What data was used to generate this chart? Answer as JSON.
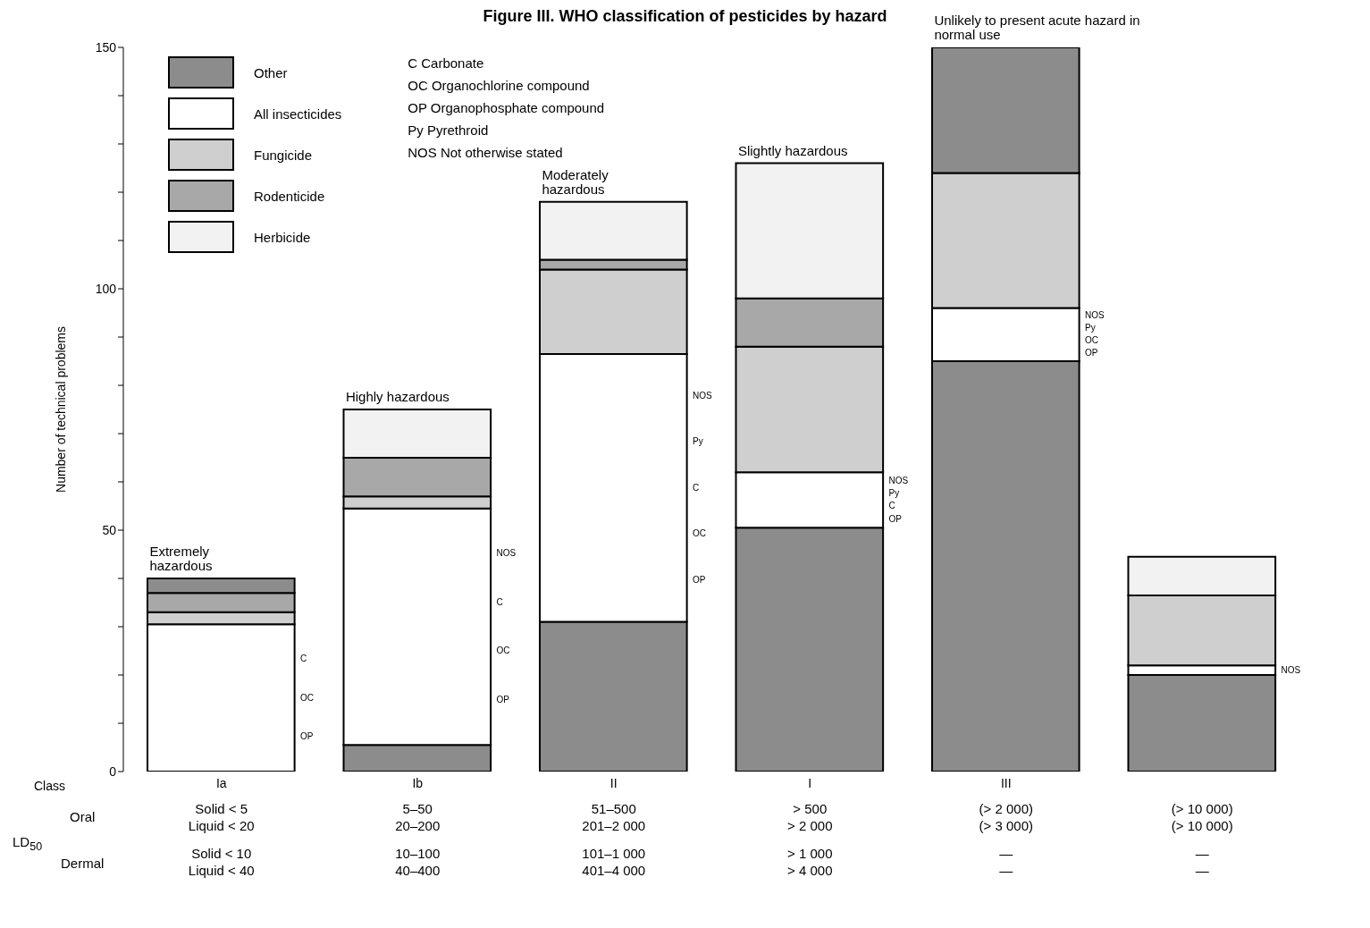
{
  "chart_data": {
    "type": "bar",
    "title": "Figure III. WHO classification of pesticides by hazard",
    "xlabel": "Class",
    "ylabel": "Number of technical problems",
    "stacked": true,
    "legend": "top left",
    "categories": [
      "Ia",
      "Ib",
      "II",
      "I",
      "III",
      null
    ],
    "ylim": [
      0,
      150
    ],
    "yticks": [
      0,
      {
        "value": 10,
        "label": null
      },
      {
        "value": 20,
        "label": null
      },
      {
        "value": 30,
        "label": null
      },
      {
        "value": 40,
        "label": null
      },
      50,
      {
        "value": 60,
        "label": null
      },
      {
        "value": 70,
        "label": null
      },
      {
        "value": 80,
        "label": null
      },
      {
        "value": 90,
        "label": null
      },
      100,
      {
        "value": 110,
        "label": null
      },
      {
        "value": 120,
        "label": null
      },
      {
        "value": 130,
        "label": null
      },
      {
        "value": 140,
        "label": null
      },
      150
    ],
    "series": [
      {
        "name": "Other",
        "color": "#8c8c8c",
        "values": [
          null,
          5.5,
          31,
          50.5,
          85,
          20
        ]
      },
      {
        "name": "All insecticides",
        "color": "#ffffff",
        "values": [
          30.5,
          49,
          55.5,
          11.5,
          11,
          2
        ]
      },
      {
        "name": "Fungicide",
        "color": "#cfcfcf",
        "values": [
          2.5,
          2.5,
          17.5,
          26,
          28,
          14.5
        ]
      },
      {
        "name": "Rodenticide",
        "color": "#a8a8a8",
        "values": [
          4,
          8,
          2,
          10,
          null,
          null
        ]
      },
      {
        "name": "Herbicide",
        "color": "#f2f2f2",
        "values": [
          null,
          10,
          12,
          28,
          null,
          8
        ]
      },
      {
        "color": "#8c8c8c",
        "values": [
          3,
          null,
          null,
          null,
          26,
          null
        ]
      }
    ],
    "annotations": [
      {
        "text": "Extremely hazardous",
        "x": "Ia",
        "y": 40
      },
      {
        "text": "Highly hazardous",
        "x": "Ib",
        "y": 75
      },
      {
        "text": "Moderately hazardous",
        "x": "II",
        "y": 118
      },
      {
        "text": "Slightly hazardous",
        "x": "I",
        "y": 126
      },
      {
        "text": "Unlikely to present acute hazard in normal use",
        "x": "III",
        "y": 150
      },
      "C Carbonate",
      "OC Organochlorine compound",
      "OP Organophosphate compound",
      "Py Pyrethroid",
      "NOS Not otherwise stated",
      "LD$_{50}$",
      "Oral",
      "Dermal",
      "Solid < 5",
      "Liquid < 20",
      "Solid < 10",
      "Liquid < 40",
      "5–50",
      "20–200",
      "10–100",
      "40–400",
      "51–500",
      "201–2 000",
      "101–1 000",
      "401–4 000",
      "> 500",
      "> 2 000",
      "> 1 000",
      "> 4 000",
      "(> 2 000)",
      "(> 3 000)",
      "—",
      "—",
      "(> 10 000)",
      "(> 10 000)",
      "—",
      "—",
      "C\nOC\nOP",
      "NOS\nC\nOC\nOP",
      "NOS\nPy\nC\nOC\nOP",
      "NOS\nPy\nC\nOP",
      "NOS\nPy\nOC\nOP",
      "NOS"
    ]
  }
}
